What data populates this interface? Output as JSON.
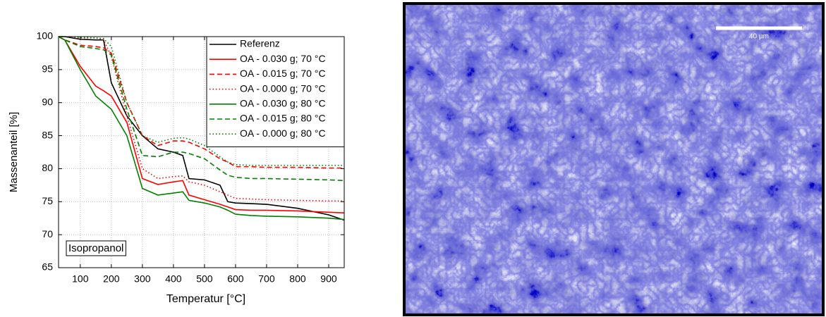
{
  "chart_data": {
    "type": "line",
    "x_label": "Temperatur [°C]",
    "y_label": "Massenanteil [%]",
    "annotation": "Isopropanol",
    "xlim": [
      30,
      950
    ],
    "xticks": [
      100,
      200,
      300,
      400,
      500,
      600,
      700,
      800,
      900
    ],
    "ylim": [
      65,
      100
    ],
    "yticks": [
      65,
      70,
      75,
      80,
      85,
      90,
      95,
      100
    ],
    "grid": true,
    "legend": "upper right",
    "x": [
      30,
      50,
      100,
      150,
      175,
      200,
      250,
      300,
      350,
      400,
      430,
      450,
      500,
      550,
      575,
      600,
      650,
      700,
      800,
      900,
      950
    ],
    "series": [
      {
        "name": "Referenz",
        "color": "#000000",
        "dash": "solid",
        "values": [
          100,
          100,
          99.6,
          99.5,
          99.5,
          93,
          88,
          85,
          83,
          82.5,
          82,
          78.5,
          78.3,
          77.5,
          75,
          74.8,
          74.7,
          74.6,
          74,
          73,
          72.2
        ]
      },
      {
        "name": "OA - 0.030 g; 70 °C",
        "color": "#ff0000",
        "dash": "solid",
        "values": [
          100,
          99.5,
          95.5,
          92.5,
          91.8,
          91,
          87,
          78.5,
          77.6,
          78,
          78.2,
          76,
          75.3,
          74.6,
          74.2,
          73.8,
          73.7,
          73.7,
          73.6,
          73.4,
          73.3
        ]
      },
      {
        "name": "OA - 0.015 g; 70 °C",
        "color": "#ff0000",
        "dash": "dashed",
        "values": [
          100,
          99.5,
          98.7,
          98.5,
          98.3,
          97.5,
          90,
          85,
          83.5,
          84.2,
          84.2,
          84,
          83,
          81.5,
          81,
          80.3,
          80.3,
          80.2,
          80.2,
          80.1,
          80.1
        ]
      },
      {
        "name": "OA - 0.000 g; 70 °C",
        "color": "#ff0000",
        "dash": "dotted",
        "values": [
          100,
          100,
          99.8,
          99.8,
          99.5,
          97,
          88,
          80,
          78.5,
          78.8,
          78.9,
          78,
          77.5,
          76.5,
          76,
          75.5,
          75.4,
          75.3,
          75.2,
          75.1,
          75.1
        ]
      },
      {
        "name": "OA - 0.030 g; 80 °C",
        "color": "#008000",
        "dash": "solid",
        "values": [
          100,
          99.5,
          95,
          91,
          90,
          89,
          85,
          77,
          76,
          76.3,
          76.5,
          75.2,
          74.8,
          74.2,
          73.7,
          73.1,
          72.9,
          72.8,
          72.7,
          72.5,
          72.3
        ]
      },
      {
        "name": "OA - 0.015 g; 80 °C",
        "color": "#008000",
        "dash": "dashed",
        "values": [
          100,
          99.5,
          98.5,
          98.2,
          98,
          97.2,
          89,
          82,
          81.8,
          82.5,
          82.5,
          82.3,
          81.5,
          79.8,
          79,
          78.7,
          78.5,
          78.5,
          78.4,
          78.3,
          78.2
        ]
      },
      {
        "name": "OA - 0.000 g; 80 °C",
        "color": "#008000",
        "dash": "dotted",
        "values": [
          100,
          100,
          99.9,
          99.8,
          99.7,
          98.5,
          90,
          85,
          84,
          84.6,
          84.7,
          84.5,
          83.5,
          81.8,
          81,
          80.6,
          80.5,
          80.5,
          80.5,
          80.5,
          80.5
        ]
      }
    ]
  },
  "image": {
    "scale_bar": "40 µm"
  }
}
